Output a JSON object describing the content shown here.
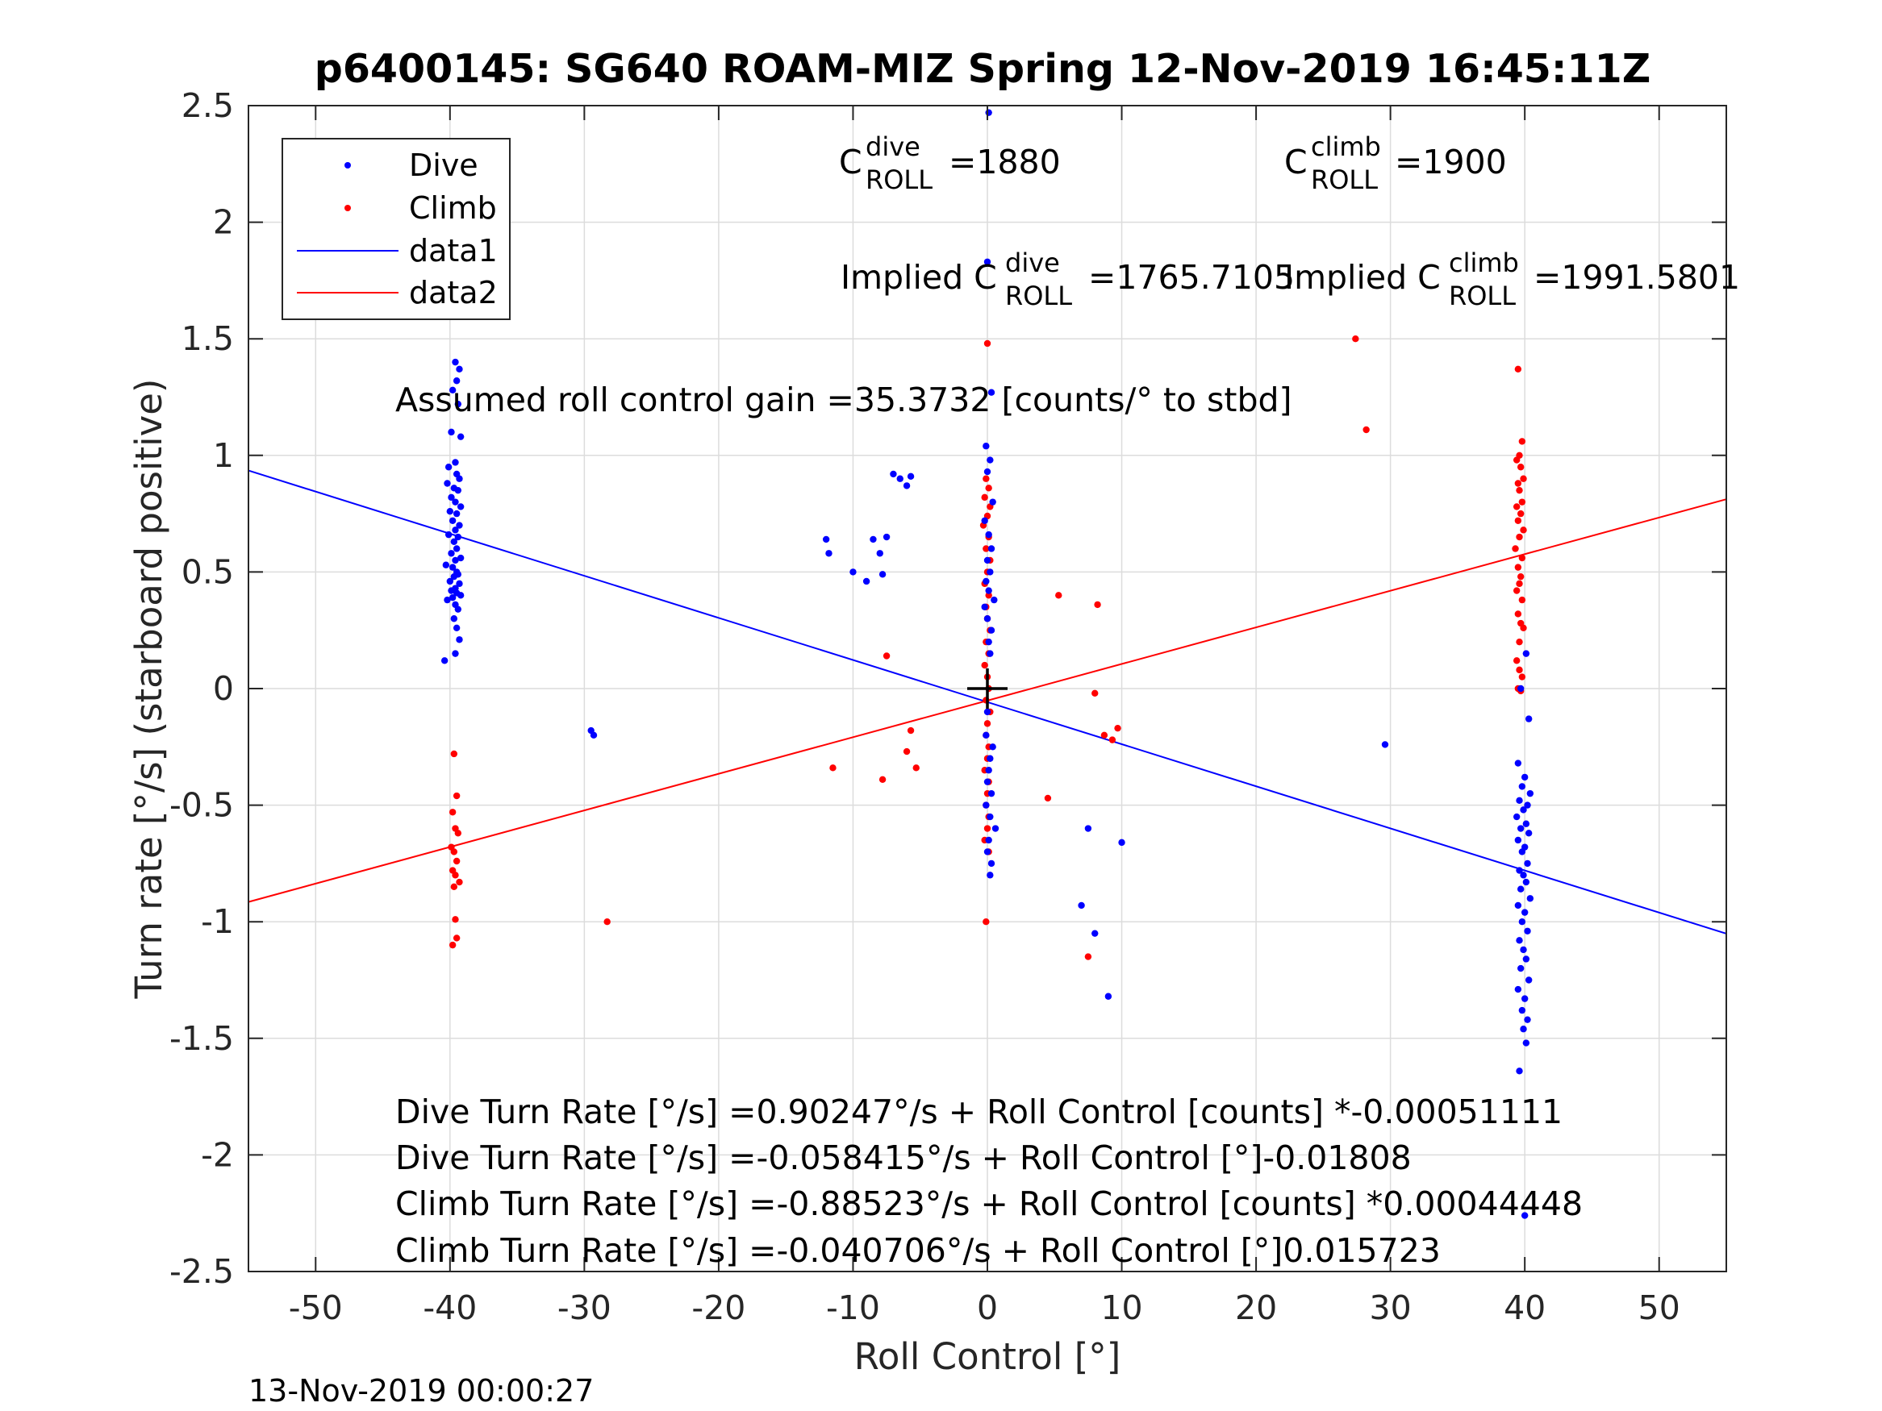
{
  "chart_data": {
    "type": "scatter",
    "title": "p6400145: SG640 ROAM-MIZ Spring 12-Nov-2019 16:45:11Z",
    "xlabel": "Roll Control [°]",
    "ylabel": "Turn rate [°/s] (starboard positive)",
    "xlim": [
      -55,
      55
    ],
    "ylim": [
      -2.5,
      2.5
    ],
    "xticks": [
      -50,
      -40,
      -30,
      -20,
      -10,
      0,
      10,
      20,
      30,
      40,
      50
    ],
    "yticks": [
      2.5,
      2,
      1.5,
      1,
      0.5,
      0,
      -0.5,
      -1,
      -1.5,
      -2,
      -2.5
    ],
    "xtick_labels": [
      "-50",
      "-40",
      "-30",
      "-20",
      "-10",
      "0",
      "10",
      "20",
      "30",
      "40",
      "50"
    ],
    "ytick_labels": [
      "2.5",
      "2",
      "1.5",
      "1",
      "0.5",
      "0",
      "-0.5",
      "-1",
      "-1.5",
      "-2",
      "-2.5"
    ],
    "grid": true,
    "legend_position": "top-left",
    "legend": [
      "Dive",
      "Climb",
      "data1",
      "data2"
    ],
    "colors": {
      "dive": "#0000ff",
      "climb": "#ff0000",
      "axis": "#262626",
      "grid": "#dcdcdc"
    },
    "series": [
      {
        "name": "Dive",
        "kind": "points",
        "x": [
          -39.7,
          -39.6,
          -39.3,
          -39.5,
          -39.8,
          -39.4,
          -39.9,
          -39.2,
          -39.6,
          -40.1,
          -39.5,
          -39.3,
          -40.2,
          -39.7,
          -39.4,
          -39.9,
          -39.6,
          -39.2,
          -40.0,
          -39.5,
          -39.8,
          -39.3,
          -39.6,
          -40.1,
          -39.4,
          -39.7,
          -39.5,
          -39.9,
          -39.2,
          -39.6,
          -40.3,
          -39.8,
          -39.5,
          -39.4,
          -39.7,
          -40.0,
          -39.3,
          -39.6,
          -39.9,
          -39.5,
          -39.2,
          -39.8,
          -40.2,
          -39.6,
          -39.4,
          -39.7,
          -39.5,
          -39.3,
          -40.4,
          -39.6,
          -29.5,
          -29.3,
          -12,
          -11.8,
          -10,
          -9,
          -8.5,
          -8,
          -7.8,
          -7.5,
          -7,
          -6.5,
          -6,
          -5.7,
          0.1,
          0.0,
          0.3,
          -0.1,
          0.2,
          0.0,
          0.4,
          -0.2,
          0.1,
          0.3,
          0.0,
          0.2,
          -0.1,
          0.1,
          0.5,
          -0.2,
          0.0,
          0.3,
          0.1,
          0.2,
          0.0,
          -0.1,
          0.4,
          0.2,
          0.1,
          0.0,
          0.3,
          -0.1,
          0.2,
          0.6,
          0.1,
          0.0,
          0.3,
          0.2,
          7,
          7.5,
          8,
          9,
          10,
          29.6,
          40.1,
          39.7,
          40.3,
          39.5,
          40.0,
          39.8,
          40.4,
          39.6,
          40.2,
          39.9,
          39.4,
          40.1,
          39.7,
          40.3,
          39.5,
          40.0,
          39.8,
          40.2,
          39.6,
          39.9,
          40.1,
          39.7,
          40.4,
          39.5,
          40.0,
          39.8,
          40.2,
          39.6,
          39.9,
          40.1,
          39.7,
          40.3,
          39.5,
          40.0,
          39.8,
          40.2,
          39.9,
          40.1,
          39.6,
          40.0
        ],
        "y": [
          1.61,
          1.4,
          1.37,
          1.32,
          1.28,
          1.22,
          1.1,
          1.08,
          0.97,
          0.95,
          0.92,
          0.9,
          0.88,
          0.86,
          0.85,
          0.82,
          0.8,
          0.78,
          0.76,
          0.75,
          0.72,
          0.7,
          0.68,
          0.66,
          0.65,
          0.63,
          0.6,
          0.58,
          0.56,
          0.55,
          0.53,
          0.52,
          0.5,
          0.49,
          0.48,
          0.46,
          0.45,
          0.43,
          0.42,
          0.41,
          0.4,
          0.39,
          0.38,
          0.36,
          0.34,
          0.3,
          0.26,
          0.21,
          0.12,
          0.15,
          -0.18,
          -0.2,
          0.64,
          0.58,
          0.5,
          0.46,
          0.64,
          0.58,
          0.49,
          0.65,
          0.92,
          0.9,
          0.87,
          0.91,
          2.47,
          1.83,
          1.27,
          1.04,
          0.98,
          0.93,
          0.8,
          0.72,
          0.66,
          0.6,
          0.55,
          0.5,
          0.46,
          0.42,
          0.38,
          0.35,
          0.3,
          0.25,
          0.2,
          0.15,
          -0.1,
          -0.2,
          -0.25,
          -0.3,
          -0.35,
          -0.4,
          -0.45,
          -0.5,
          -0.55,
          -0.6,
          -0.65,
          -0.7,
          -0.75,
          -0.8,
          -0.93,
          -0.6,
          -1.05,
          -1.32,
          -0.66,
          -0.24,
          0.15,
          0.0,
          -0.13,
          -0.32,
          -0.38,
          -0.42,
          -0.45,
          -0.48,
          -0.5,
          -0.52,
          -0.55,
          -0.58,
          -0.6,
          -0.62,
          -0.65,
          -0.68,
          -0.7,
          -0.75,
          -0.78,
          -0.8,
          -0.83,
          -0.86,
          -0.9,
          -0.93,
          -0.96,
          -1.0,
          -1.04,
          -1.08,
          -1.12,
          -1.16,
          -1.2,
          -1.25,
          -1.29,
          -1.33,
          -1.38,
          -1.42,
          -1.46,
          -1.52,
          -1.64,
          -2.26
        ]
      },
      {
        "name": "Climb",
        "kind": "points",
        "x": [
          -39.7,
          -39.5,
          -39.8,
          -39.6,
          -39.4,
          -39.9,
          -39.7,
          -39.5,
          -39.8,
          -39.6,
          -39.3,
          -39.7,
          -39.6,
          -39.5,
          -39.8,
          -28.3,
          -11.5,
          -7.8,
          -7.5,
          -6,
          -5.7,
          -5.3,
          0.0,
          -0.1,
          0.1,
          -0.2,
          0.2,
          0.0,
          -0.3,
          0.1,
          -0.1,
          0.2,
          0.0,
          -0.2,
          0.1,
          -0.1,
          0.0,
          0.2,
          -0.1,
          0.1,
          -0.2,
          0.0,
          0.1,
          -0.1,
          0.2,
          0.0,
          -0.1,
          0.1,
          0.0,
          -0.2,
          0.1,
          0.0,
          -0.1,
          0.1,
          0.0,
          -0.2,
          0.1,
          -0.1,
          4.5,
          5.3,
          7.5,
          8,
          8.2,
          8.7,
          9.3,
          9.7,
          27.4,
          28.2,
          39.5,
          39.8,
          39.6,
          39.4,
          39.7,
          39.9,
          39.5,
          39.6,
          39.8,
          39.4,
          39.7,
          39.5,
          39.9,
          39.6,
          39.3,
          39.8,
          39.5,
          39.7,
          39.6,
          39.4,
          39.8,
          39.5,
          39.7,
          39.9,
          39.6,
          39.4,
          39.8,
          39.5,
          39.7,
          39.6
        ],
        "y": [
          -0.28,
          -0.46,
          -0.53,
          -0.6,
          -0.62,
          -0.68,
          -0.7,
          -0.74,
          -0.78,
          -0.8,
          -0.83,
          -0.85,
          -0.99,
          -1.07,
          -1.1,
          -1.0,
          -0.34,
          -0.39,
          0.14,
          -0.27,
          -0.18,
          -0.34,
          1.48,
          0.9,
          0.86,
          0.82,
          0.78,
          0.74,
          0.7,
          0.65,
          0.6,
          0.55,
          0.5,
          0.45,
          0.4,
          0.35,
          0.3,
          0.25,
          0.2,
          0.15,
          0.1,
          0.05,
          0.0,
          -0.05,
          -0.1,
          -0.15,
          -0.2,
          -0.25,
          -0.3,
          -0.35,
          -0.4,
          -0.45,
          -0.5,
          -0.55,
          -0.6,
          -0.65,
          -0.7,
          -1.0,
          -0.47,
          0.4,
          -1.15,
          -0.02,
          0.36,
          -0.2,
          -0.22,
          -0.17,
          1.5,
          1.11,
          1.37,
          1.06,
          1.0,
          0.98,
          0.95,
          0.9,
          0.88,
          0.85,
          0.8,
          0.78,
          0.75,
          0.72,
          0.68,
          0.65,
          0.6,
          0.56,
          0.52,
          0.48,
          0.45,
          0.42,
          0.38,
          0.32,
          0.28,
          0.26,
          0.2,
          0.12,
          0.05,
          0.0,
          -0.01,
          0.08
        ]
      },
      {
        "name": "data1",
        "kind": "line",
        "x": [
          -55,
          55
        ],
        "y": [
          0.935,
          -1.051
        ]
      },
      {
        "name": "data2",
        "kind": "line",
        "x": [
          -55,
          55
        ],
        "y": [
          -0.915,
          0.812
        ]
      }
    ],
    "marker_center": {
      "x": 0,
      "y": 0
    },
    "annotations": {
      "c_dive": {
        "base": "C",
        "sup": "dive",
        "sub": "ROLL",
        "value": " =1880"
      },
      "c_climb": {
        "base": "C",
        "sup": "climb",
        "sub": "ROLL",
        "value": " =1900"
      },
      "implied_dive": {
        "prefix": "Implied C",
        "sup": "dive",
        "sub": "ROLL",
        "value": " =1765.7105"
      },
      "implied_climb": {
        "prefix": "Implied C",
        "sup": "climb",
        "sub": "ROLL",
        "value": " =1991.5801"
      },
      "gain": "Assumed roll control gain =35.3732 [counts/° to stbd]",
      "eq1": "Dive Turn Rate [°/s] =0.90247°/s + Roll Control [counts] *-0.00051111",
      "eq2": "Dive Turn Rate [°/s] =-0.058415°/s + Roll Control [°]-0.01808",
      "eq3": "Climb Turn Rate [°/s] =-0.88523°/s + Roll Control [counts] *0.00044448",
      "eq4": "Climb Turn Rate [°/s] =-0.040706°/s + Roll Control [°]0.015723"
    },
    "timestamp": "13-Nov-2019 00:00:27"
  }
}
